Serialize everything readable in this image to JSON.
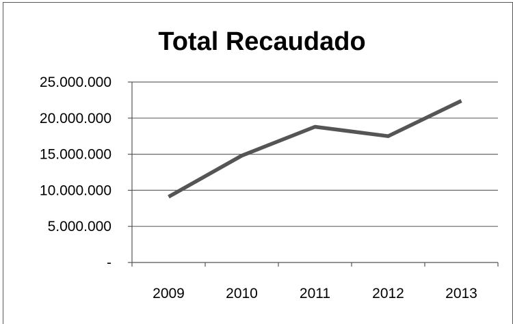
{
  "chart_data": {
    "type": "line",
    "title": "Total Recaudado",
    "xlabel": "",
    "ylabel": "",
    "categories": [
      "2009",
      "2010",
      "2011",
      "2012",
      "2013"
    ],
    "series": [
      {
        "values": [
          9100000,
          14800000,
          18800000,
          17500000,
          22400000
        ]
      }
    ],
    "ylim": [
      0,
      25000000
    ],
    "yticks": [
      0,
      5000000,
      10000000,
      15000000,
      20000000,
      25000000
    ],
    "ytick_labels": [
      "-",
      "5.000.000",
      "10.000.000",
      "15.000.000",
      "20.000.000",
      "25.000.000"
    ],
    "grid": true,
    "legend": "none",
    "line_color": "#555555",
    "grid_color": "#666666"
  }
}
